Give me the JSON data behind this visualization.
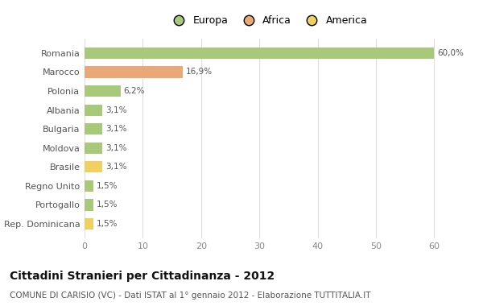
{
  "categories": [
    "Romania",
    "Marocco",
    "Polonia",
    "Albania",
    "Bulgaria",
    "Moldova",
    "Brasile",
    "Regno Unito",
    "Portogallo",
    "Rep. Dominicana"
  ],
  "values": [
    60.0,
    16.9,
    6.2,
    3.1,
    3.1,
    3.1,
    3.1,
    1.5,
    1.5,
    1.5
  ],
  "labels": [
    "60,0%",
    "16,9%",
    "6,2%",
    "3,1%",
    "3,1%",
    "3,1%",
    "3,1%",
    "1,5%",
    "1,5%",
    "1,5%"
  ],
  "colors": [
    "#a8c87a",
    "#e8a878",
    "#a8c87a",
    "#a8c87a",
    "#a8c87a",
    "#a8c87a",
    "#f0d060",
    "#a8c87a",
    "#a8c87a",
    "#f0d060"
  ],
  "legend": [
    {
      "label": "Europa",
      "color": "#a8c87a"
    },
    {
      "label": "Africa",
      "color": "#e8a878"
    },
    {
      "label": "America",
      "color": "#f0d060"
    }
  ],
  "xlim": [
    0,
    63
  ],
  "xticks": [
    0,
    10,
    20,
    30,
    40,
    50,
    60
  ],
  "title": "Cittadini Stranieri per Cittadinanza - 2012",
  "subtitle": "COMUNE DI CARISIO (VC) - Dati ISTAT al 1° gennaio 2012 - Elaborazione TUTTITALIA.IT",
  "background_color": "#ffffff",
  "grid_color": "#dddddd",
  "bar_height": 0.6,
  "label_color": "#555555",
  "ytick_color": "#555555",
  "xtick_color": "#888888"
}
